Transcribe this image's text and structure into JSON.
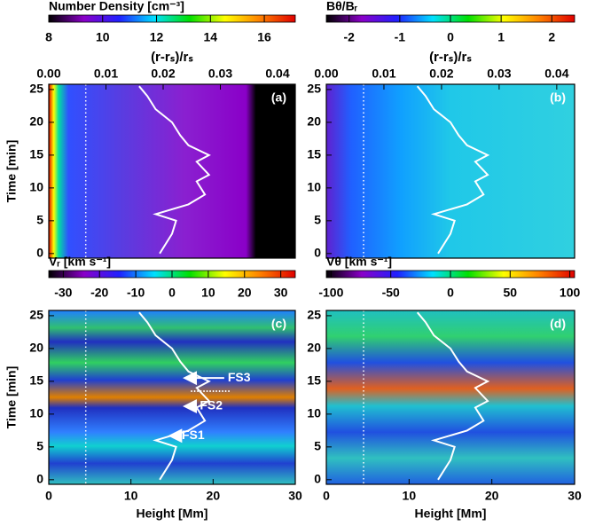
{
  "chart_data": [
    {
      "type": "heatmap",
      "title": "Number Density [cm⁻³]",
      "clim": [
        8,
        17.15
      ],
      "cticks": [
        8,
        10,
        12,
        14,
        16
      ],
      "colormap": [
        "#000000",
        "#8a00c8",
        "#2020ff",
        "#00e0ff",
        "#00e000",
        "#ffff00",
        "#ff8000",
        "#e00000"
      ],
      "panel_label": "(a)",
      "ylabel": "Time [min]",
      "ylim": [
        -0.7,
        25.8
      ],
      "yticks": [
        0,
        5,
        10,
        15,
        20,
        25
      ],
      "xlim": [
        0,
        30
      ],
      "top_xlabel": "(r-rₛ)/rₛ",
      "top_xlim": [
        0,
        0.0431
      ],
      "top_xticks": [
        {
          "value": 0,
          "label": "0.00"
        },
        {
          "value": 0.01,
          "label": "0.01"
        },
        {
          "value": 0.02,
          "label": "0.02"
        },
        {
          "value": 0.03,
          "label": "0.03"
        },
        {
          "value": 0.04,
          "label": "0.04"
        }
      ],
      "vline": 4.5,
      "boundary": {
        "color": "#ffffff",
        "x": [
          13.5,
          15,
          15.5,
          13,
          17,
          19,
          18,
          19.5,
          18,
          19.5,
          17,
          16,
          15,
          13,
          12,
          11
        ],
        "y": [
          0,
          3,
          5,
          6,
          7.5,
          9,
          11,
          12,
          14,
          15,
          16.5,
          18,
          20,
          22,
          24,
          25.5
        ]
      }
    },
    {
      "type": "heatmap",
      "title": "Bθ/Bᵣ",
      "clim": [
        -2.45,
        2.45
      ],
      "cticks": [
        -2,
        -1,
        0,
        1,
        2
      ],
      "colormap": [
        "#000000",
        "#8a00c8",
        "#2020ff",
        "#00e0ff",
        "#00e000",
        "#ffff00",
        "#ff8000",
        "#e00000"
      ],
      "panel_label": "(b)",
      "ylim": [
        -0.7,
        25.8
      ],
      "yticks": [
        0,
        5,
        10,
        15,
        20,
        25
      ],
      "xlim": [
        0,
        30
      ],
      "top_xlabel": "(r-rₛ)/rₛ",
      "top_xlim": [
        0,
        0.0431
      ],
      "top_xticks": [
        {
          "value": 0,
          "label": "0.00"
        },
        {
          "value": 0.01,
          "label": "0.01"
        },
        {
          "value": 0.02,
          "label": "0.02"
        },
        {
          "value": 0.03,
          "label": "0.03"
        },
        {
          "value": 0.04,
          "label": "0.04"
        }
      ],
      "vline": 4.5,
      "boundary": {
        "color": "#ffffff",
        "x": [
          13.5,
          15,
          15.5,
          13,
          17,
          19,
          18,
          19.5,
          18,
          19.5,
          17,
          16,
          15,
          13,
          12,
          11
        ],
        "y": [
          0,
          3,
          5,
          6,
          7.5,
          9,
          11,
          12,
          14,
          15,
          16.5,
          18,
          20,
          22,
          24,
          25.5
        ]
      }
    },
    {
      "type": "heatmap",
      "title": "Vᵣ [km s⁻¹]",
      "clim": [
        -34,
        34
      ],
      "cticks": [
        -30,
        -20,
        -10,
        0,
        10,
        20,
        30
      ],
      "colormap": [
        "#000000",
        "#8a00c8",
        "#2020ff",
        "#00e0ff",
        "#00e000",
        "#ffff00",
        "#ff8000",
        "#e00000"
      ],
      "panel_label": "(c)",
      "ylabel": "Time [min]",
      "ylim": [
        -0.7,
        25.8
      ],
      "yticks": [
        0,
        5,
        10,
        15,
        20,
        25
      ],
      "xlim": [
        0,
        30
      ],
      "xticks": [
        0,
        10,
        20,
        30
      ],
      "xlabel": "Height [Mm]",
      "vline": 4.5,
      "annotations": [
        "FS3",
        "FS2",
        "FS1"
      ],
      "boundary": {
        "color": "#ffffff",
        "x": [
          13.5,
          15,
          15.5,
          13,
          17,
          19,
          18,
          19.5,
          18,
          19.5,
          17,
          16,
          15,
          13,
          12,
          11
        ],
        "y": [
          0,
          3,
          5,
          6,
          7.5,
          9,
          11,
          12,
          14,
          15,
          16.5,
          18,
          20,
          22,
          24,
          25.5
        ]
      }
    },
    {
      "type": "heatmap",
      "title": "Vθ [km s⁻¹]",
      "clim": [
        -104,
        104
      ],
      "cticks": [
        -100,
        -50,
        0,
        50,
        100
      ],
      "colormap": [
        "#000000",
        "#8a00c8",
        "#2020ff",
        "#00e0ff",
        "#00e000",
        "#ffff00",
        "#ff8000",
        "#e00000"
      ],
      "panel_label": "(d)",
      "ylim": [
        -0.7,
        25.8
      ],
      "yticks": [
        0,
        5,
        10,
        15,
        20,
        25
      ],
      "xlim": [
        0,
        30
      ],
      "xticks": [
        0,
        10,
        20,
        30
      ],
      "xlabel": "Height [Mm]",
      "vline": 4.5,
      "boundary": {
        "color": "#ffffff",
        "x": [
          13.5,
          15,
          15.5,
          13,
          17,
          19,
          18,
          19.5,
          18,
          19.5,
          17,
          16,
          15,
          13,
          12,
          11
        ],
        "y": [
          0,
          3,
          5,
          6,
          7.5,
          9,
          11,
          12,
          14,
          15,
          16.5,
          18,
          20,
          22,
          24,
          25.5
        ]
      }
    }
  ]
}
